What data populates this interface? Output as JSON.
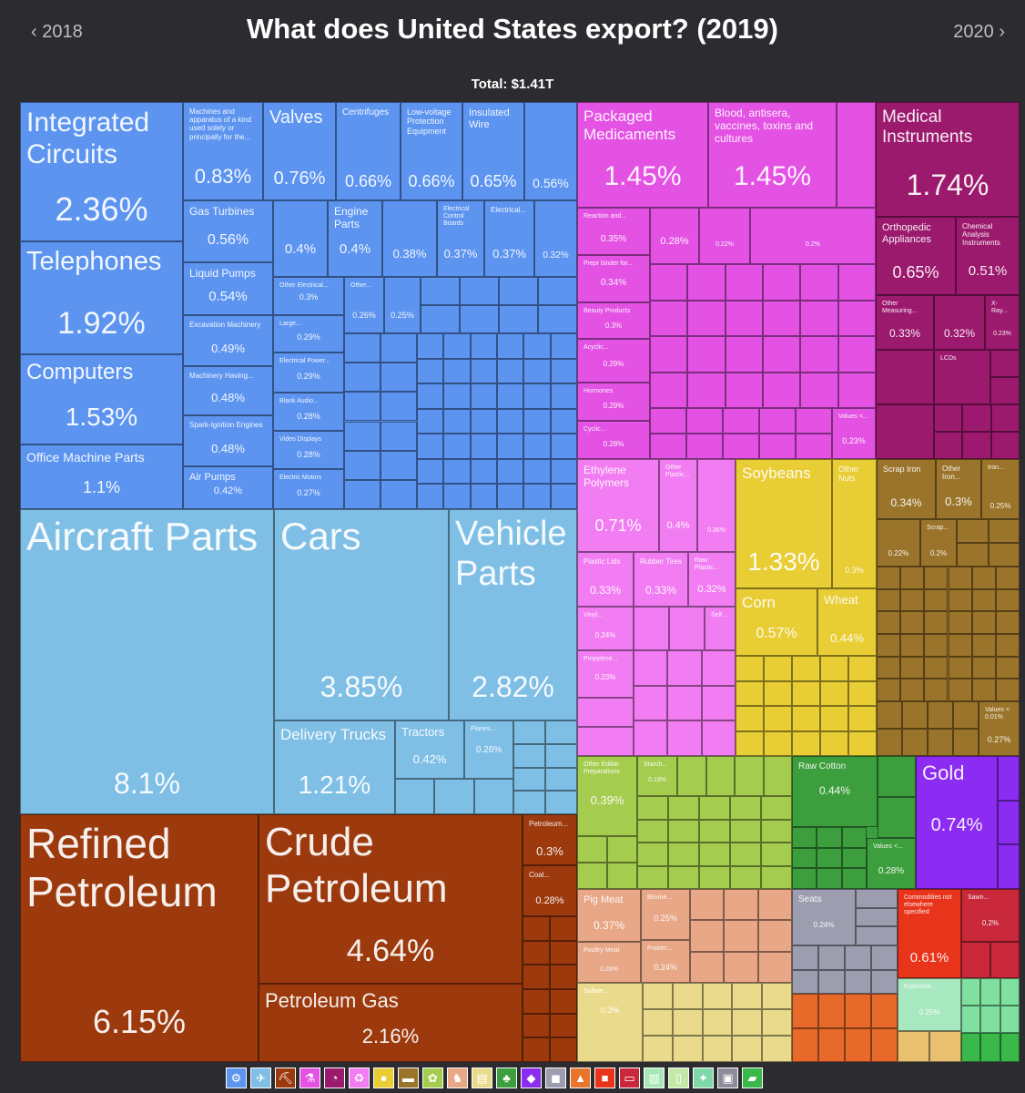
{
  "header": {
    "prev_year": "‹  2018",
    "next_year": "2020  ›",
    "title": "What does United States export? (2019)",
    "total": "Total: $1.41T"
  },
  "colors": {
    "machinery": "#5c94f0",
    "transport": "#7fbfe6",
    "mineral": "#9c3a0e",
    "chemical": "#e452e4",
    "instruments": "#9c1a6e",
    "plastics": "#f27df2",
    "vegetable": "#e8cd35",
    "metals": "#9a742a",
    "foodstuffs": "#a4cc4e",
    "textiles": "#3d9e3d",
    "precious": "#8c2bf2",
    "animal": "#e8a787",
    "paper": "#eadb8c",
    "misc": "#9d9db0",
    "weapons": "#e8341a",
    "wood": "#c8283a"
  },
  "chart_data": {
    "type": "treemap",
    "title": "What does United States export? (2019)",
    "total": "Total: $1.41T",
    "sectors": [
      {
        "name": "Machinery",
        "items": [
          {
            "label": "Integrated Circuits",
            "value": "2.36%"
          },
          {
            "label": "Telephones",
            "value": "1.92%"
          },
          {
            "label": "Computers",
            "value": "1.53%"
          },
          {
            "label": "Office Machine Parts",
            "value": "1.1%"
          },
          {
            "label": "Machines and apparatus of a kind used solely or principally for the...",
            "value": "0.83%"
          },
          {
            "label": "Valves",
            "value": "0.76%"
          },
          {
            "label": "Centrifuges",
            "value": "0.66%"
          },
          {
            "label": "Low-voltage Protection Equipment",
            "value": "0.66%"
          },
          {
            "label": "Insulated Wire",
            "value": "0.65%"
          },
          {
            "label": "",
            "value": "0.56%"
          },
          {
            "label": "Gas Turbines",
            "value": "0.56%"
          },
          {
            "label": "Liquid Pumps",
            "value": "0.54%"
          },
          {
            "label": "Excavation Machinery",
            "value": "0.49%"
          },
          {
            "label": "Machinery Having...",
            "value": "0.48%"
          },
          {
            "label": "Spark-Ignition Engines",
            "value": "0.48%"
          },
          {
            "label": "Air Pumps",
            "value": "0.42%"
          },
          {
            "label": "",
            "value": "0.4%"
          },
          {
            "label": "Engine Parts",
            "value": "0.4%"
          },
          {
            "label": "",
            "value": "0.38%"
          },
          {
            "label": "Electrical Control Boards",
            "value": "0.37%"
          },
          {
            "label": "Electrical...",
            "value": "0.37%"
          },
          {
            "label": "",
            "value": "0.32%"
          },
          {
            "label": "Other Electrical...",
            "value": "0.3%"
          },
          {
            "label": "Other...",
            "value": "0.26%"
          },
          {
            "label": "",
            "value": "0.25%"
          },
          {
            "label": "Large...",
            "value": "0.29%"
          },
          {
            "label": "Electrical Power...",
            "value": "0.29%"
          },
          {
            "label": "Blank Audio...",
            "value": "0.28%"
          },
          {
            "label": "Video Displays",
            "value": "0.28%"
          },
          {
            "label": "Electric Motors",
            "value": "0.27%"
          }
        ]
      },
      {
        "name": "Transportation",
        "items": [
          {
            "label": "Aircraft Parts",
            "value": "8.1%"
          },
          {
            "label": "Cars",
            "value": "3.85%"
          },
          {
            "label": "Vehicle Parts",
            "value": "2.82%"
          },
          {
            "label": "Delivery Trucks",
            "value": "1.21%"
          },
          {
            "label": "Tractors",
            "value": "0.42%"
          },
          {
            "label": "Planes...",
            "value": "0.26%"
          }
        ]
      },
      {
        "name": "Mineral Products",
        "items": [
          {
            "label": "Refined Petroleum",
            "value": "6.15%"
          },
          {
            "label": "Crude Petroleum",
            "value": "4.64%"
          },
          {
            "label": "Petroleum Gas",
            "value": "2.16%"
          },
          {
            "label": "Petroleum...",
            "value": "0.3%"
          },
          {
            "label": "Coal...",
            "value": "0.28%"
          }
        ]
      },
      {
        "name": "Chemical Products",
        "items": [
          {
            "label": "Packaged Medicaments",
            "value": "1.45%"
          },
          {
            "label": "Blood, antisera, vaccines, toxins and cultures",
            "value": "1.45%"
          },
          {
            "label": "Reaction and...",
            "value": "0.35%"
          },
          {
            "label": "",
            "value": "0.28%"
          },
          {
            "label": "",
            "value": "0.22%"
          },
          {
            "label": "",
            "value": "0.2%"
          },
          {
            "label": "Prepr binder for...",
            "value": "0.34%"
          },
          {
            "label": "Beauty Products",
            "value": "0.3%"
          },
          {
            "label": "Acyclic...",
            "value": "0.29%"
          },
          {
            "label": "Hormones",
            "value": "0.29%"
          },
          {
            "label": "Cyclic...",
            "value": "0.28%"
          },
          {
            "label": "Values <...",
            "value": "0.23%"
          }
        ]
      },
      {
        "name": "Instruments",
        "items": [
          {
            "label": "Medical Instruments",
            "value": "1.74%"
          },
          {
            "label": "Orthopedic Appliances",
            "value": "0.65%"
          },
          {
            "label": "Chemical Analysis Instruments",
            "value": "0.51%"
          },
          {
            "label": "Other Measuring...",
            "value": "0.33%"
          },
          {
            "label": "",
            "value": "0.32%"
          },
          {
            "label": "X-Ray...",
            "value": "0.23%"
          },
          {
            "label": "LCDs",
            "value": ""
          }
        ]
      },
      {
        "name": "Plastics and Rubbers",
        "items": [
          {
            "label": "Ethylene Polymers",
            "value": "0.71%"
          },
          {
            "label": "Other Plastic...",
            "value": "0.4%"
          },
          {
            "label": "",
            "value": "0.36%"
          },
          {
            "label": "Plastic Lids",
            "value": "0.33%"
          },
          {
            "label": "Rubber Tires",
            "value": "0.33%"
          },
          {
            "label": "Raw Plastic...",
            "value": "0.32%"
          },
          {
            "label": "Vinyl...",
            "value": "0.24%"
          },
          {
            "label": "Self...",
            "value": ""
          },
          {
            "label": "Propylene...",
            "value": "0.23%"
          }
        ]
      },
      {
        "name": "Vegetable Products",
        "items": [
          {
            "label": "Soybeans",
            "value": "1.33%"
          },
          {
            "label": "Other Nuts",
            "value": "0.3%"
          },
          {
            "label": "Corn",
            "value": "0.57%"
          },
          {
            "label": "Wheat",
            "value": "0.44%"
          }
        ]
      },
      {
        "name": "Metals",
        "items": [
          {
            "label": "Scrap Iron",
            "value": "0.34%"
          },
          {
            "label": "Other Iron...",
            "value": "0.3%"
          },
          {
            "label": "Iron...",
            "value": "0.25%"
          },
          {
            "label": "",
            "value": "0.22%"
          },
          {
            "label": "Scrap...",
            "value": "0.2%"
          },
          {
            "label": "Values < 0.01%",
            "value": "0.27%"
          }
        ]
      },
      {
        "name": "Foodstuffs",
        "items": [
          {
            "label": "Other Edible Preparations",
            "value": "0.39%"
          },
          {
            "label": "Starch...",
            "value": "0.19%"
          }
        ]
      },
      {
        "name": "Textiles",
        "items": [
          {
            "label": "Raw Cotton",
            "value": "0.44%"
          },
          {
            "label": "Values <...",
            "value": "0.28%"
          }
        ]
      },
      {
        "name": "Precious Metals",
        "items": [
          {
            "label": "Gold",
            "value": "0.74%"
          }
        ]
      },
      {
        "name": "Animal Products",
        "items": [
          {
            "label": "Pig Meat",
            "value": "0.37%"
          },
          {
            "label": "Bovine...",
            "value": "0.25%"
          },
          {
            "label": "Poultry Meat",
            "value": "0.26%"
          },
          {
            "label": "Frozen...",
            "value": "0.24%"
          }
        ]
      },
      {
        "name": "Paper Goods",
        "items": [
          {
            "label": "Sulfate...",
            "value": "0.3%"
          }
        ]
      },
      {
        "name": "Miscellaneous",
        "items": [
          {
            "label": "Seats",
            "value": "0.24%"
          }
        ]
      },
      {
        "name": "Weapons",
        "items": [
          {
            "label": "Commodities not elsewhere specified",
            "value": "0.61%"
          }
        ]
      },
      {
        "name": "Wood Products",
        "items": [
          {
            "label": "Sawn...",
            "value": "0.2%"
          }
        ]
      },
      {
        "name": "Stone And Glass",
        "items": [
          {
            "label": "Explosive...",
            "value": "0.25%"
          }
        ]
      }
    ]
  },
  "legend": [
    {
      "name": "machinery-icon",
      "glyph": "⚙",
      "color": "#5c94f0"
    },
    {
      "name": "transport-icon",
      "glyph": "✈",
      "color": "#7fbfe6"
    },
    {
      "name": "mineral-icon",
      "glyph": "⛏",
      "color": "#9c3a0e"
    },
    {
      "name": "chemical-icon",
      "glyph": "⚗",
      "color": "#e452e4"
    },
    {
      "name": "instruments-icon",
      "glyph": "◔",
      "color": "#9c1a6e"
    },
    {
      "name": "plastics-icon",
      "glyph": "♻",
      "color": "#f27df2"
    },
    {
      "name": "vegetable-icon",
      "glyph": "●",
      "color": "#e8cd35"
    },
    {
      "name": "metals-icon",
      "glyph": "▬",
      "color": "#9a742a"
    },
    {
      "name": "foodstuffs-icon",
      "glyph": "✿",
      "color": "#a4cc4e"
    },
    {
      "name": "animal-icon",
      "glyph": "♞",
      "color": "#e8a787"
    },
    {
      "name": "paper-icon",
      "glyph": "▤",
      "color": "#eadb8c"
    },
    {
      "name": "textiles-icon",
      "glyph": "♣",
      "color": "#3d9e3d"
    },
    {
      "name": "precious-icon",
      "glyph": "◆",
      "color": "#8c2bf2"
    },
    {
      "name": "misc-icon",
      "glyph": "◼",
      "color": "#9d9db0"
    },
    {
      "name": "footwear-icon",
      "glyph": "▲",
      "color": "#e8752b"
    },
    {
      "name": "weapons-icon",
      "glyph": "■",
      "color": "#e8341a"
    },
    {
      "name": "wood-icon",
      "glyph": "▭",
      "color": "#c8283a"
    },
    {
      "name": "stone-icon",
      "glyph": "▥",
      "color": "#a8e8b8"
    },
    {
      "name": "bottles-icon",
      "glyph": "▯",
      "color": "#c4e8a8"
    },
    {
      "name": "hides-icon",
      "glyph": "✦",
      "color": "#7fd8a8"
    },
    {
      "name": "arts-icon",
      "glyph": "▣",
      "color": "#8c8c9a"
    },
    {
      "name": "shoe-icon",
      "glyph": "▰",
      "color": "#3ab84a"
    }
  ]
}
